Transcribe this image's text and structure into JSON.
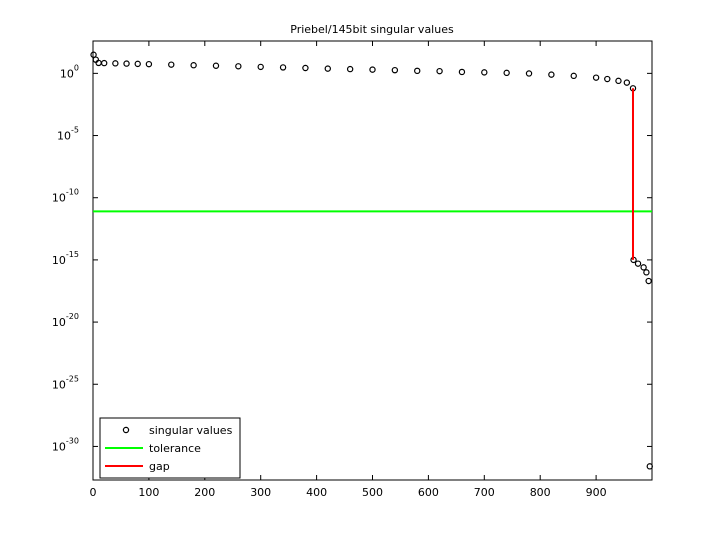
{
  "chart_data": {
    "type": "scatter",
    "title": "Priebel/145bit singular values",
    "xlim": [
      0,
      1000
    ],
    "xticks": [
      0,
      100,
      200,
      300,
      400,
      500,
      600,
      700,
      800,
      900
    ],
    "ylim": [
      2e-33,
      400
    ],
    "yscale": "log",
    "yticks": [
      {
        "value": 1,
        "label": "10^0"
      },
      {
        "value": 1e-05,
        "label": "10^-5"
      },
      {
        "value": 1e-10,
        "label": "10^-10"
      },
      {
        "value": 1e-15,
        "label": "10^-15"
      },
      {
        "value": 1e-20,
        "label": "10^-20"
      },
      {
        "value": 1e-25,
        "label": "10^-25"
      },
      {
        "value": 1e-30,
        "label": "10^-30"
      }
    ],
    "legend": "southwest",
    "series": [
      {
        "name": "singular values",
        "color": "#000000",
        "mark": "circle",
        "x": [
          1,
          5,
          10,
          20,
          40,
          60,
          80,
          100,
          140,
          180,
          220,
          260,
          300,
          340,
          380,
          420,
          460,
          500,
          540,
          580,
          620,
          660,
          700,
          740,
          780,
          820,
          860,
          900,
          920,
          940,
          955,
          966,
          967,
          975,
          985,
          990,
          994,
          996
        ],
        "values": [
          31.6,
          12.6,
          6.9,
          6.7,
          6.4,
          6.1,
          5.8,
          5.5,
          5.0,
          4.5,
          4.1,
          3.7,
          3.3,
          3.0,
          2.7,
          2.4,
          2.2,
          2.0,
          1.8,
          1.6,
          1.5,
          1.3,
          1.2,
          1.1,
          0.98,
          0.79,
          0.63,
          0.45,
          0.35,
          0.25,
          0.18,
          0.063,
          1e-15,
          5e-16,
          2.5e-16,
          1e-16,
          2e-17,
          2.5e-32
        ]
      },
      {
        "name": "tolerance",
        "color": "#00ff00",
        "mark": "line",
        "x": [
          0,
          1000
        ],
        "values": [
          8e-12,
          8e-12
        ]
      },
      {
        "name": "gap",
        "color": "#ff0000",
        "mark": "line",
        "x": [
          966,
          966
        ],
        "values": [
          0.063,
          1e-15
        ]
      }
    ]
  }
}
